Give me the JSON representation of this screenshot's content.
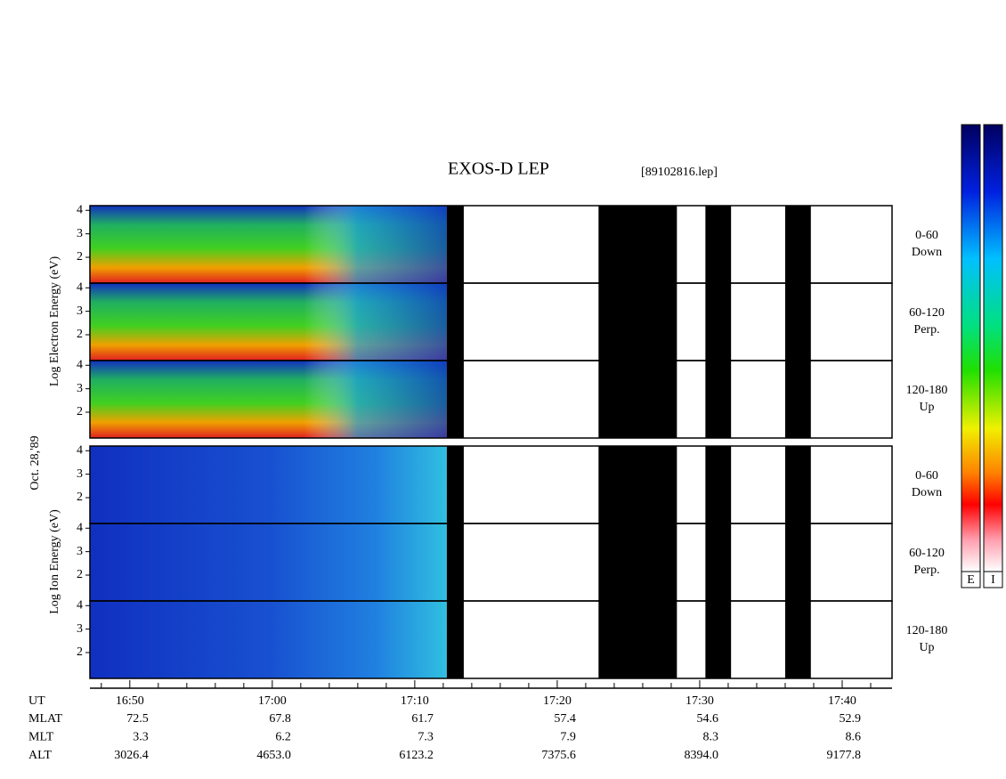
{
  "chart_data": {
    "type": "spectrogram",
    "title": "EXOS-D LEP",
    "subtitle": "[89102816.lep]",
    "date_label": "Oct. 28,'89",
    "xlim": [
      1007.2,
      1063.5
    ],
    "xticks": [
      {
        "value": 1010,
        "label": "16:50"
      },
      {
        "value": 1020,
        "label": "17:00"
      },
      {
        "value": 1030,
        "label": "17:10"
      },
      {
        "value": 1040,
        "label": "17:20"
      },
      {
        "value": 1050,
        "label": "17:30"
      },
      {
        "value": 1060,
        "label": "17:40"
      }
    ],
    "minor_xticks": [
      1008,
      1012,
      1014,
      1016,
      1018,
      1022,
      1024,
      1026,
      1028,
      1032,
      1034,
      1036,
      1038,
      1042,
      1044,
      1046,
      1048,
      1052,
      1054,
      1056,
      1058,
      1062
    ],
    "data_range": [
      1007.2,
      1032.25
    ],
    "gaps": [
      [
        1032.25,
        1033.44
      ],
      [
        1042.9,
        1048.4
      ],
      [
        1050.4,
        1052.2
      ],
      [
        1056,
        1057.8
      ]
    ],
    "ylim": [
      0.9,
      4.2
    ],
    "yticks": [
      2,
      3,
      4
    ],
    "groups": [
      {
        "ylabel": "Log Electron Energy (eV)",
        "panels": [
          {
            "label": "0-60",
            "sublabel": "Down"
          },
          {
            "label": "60-120",
            "sublabel": "Perp."
          },
          {
            "label": "120-180",
            "sublabel": "Up"
          }
        ]
      },
      {
        "ylabel": "Log Ion Energy (eV)",
        "panels": [
          {
            "label": "0-60",
            "sublabel": "Down"
          },
          {
            "label": "60-120",
            "sublabel": "Perp."
          },
          {
            "label": "120-180",
            "sublabel": "Up"
          }
        ]
      }
    ],
    "colorbars": [
      "E",
      "I"
    ],
    "ephemeris": {
      "time_label": "UT",
      "rows": [
        {
          "name": "MLAT",
          "values": [
            72.5,
            67.8,
            61.7,
            57.4,
            54.6,
            52.9
          ]
        },
        {
          "name": "MLT",
          "values": [
            3.3,
            6.2,
            7.3,
            7.9,
            8.3,
            8.6
          ]
        },
        {
          "name": "ALT",
          "values": [
            3026.4,
            4653.0,
            6123.2,
            7375.6,
            8394.0,
            9177.8
          ],
          "value_labels": [
            "3026.4",
            "4653.0",
            "6123.2",
            "7375.6",
            "8394.0",
            "9177.8"
          ]
        }
      ]
    }
  }
}
